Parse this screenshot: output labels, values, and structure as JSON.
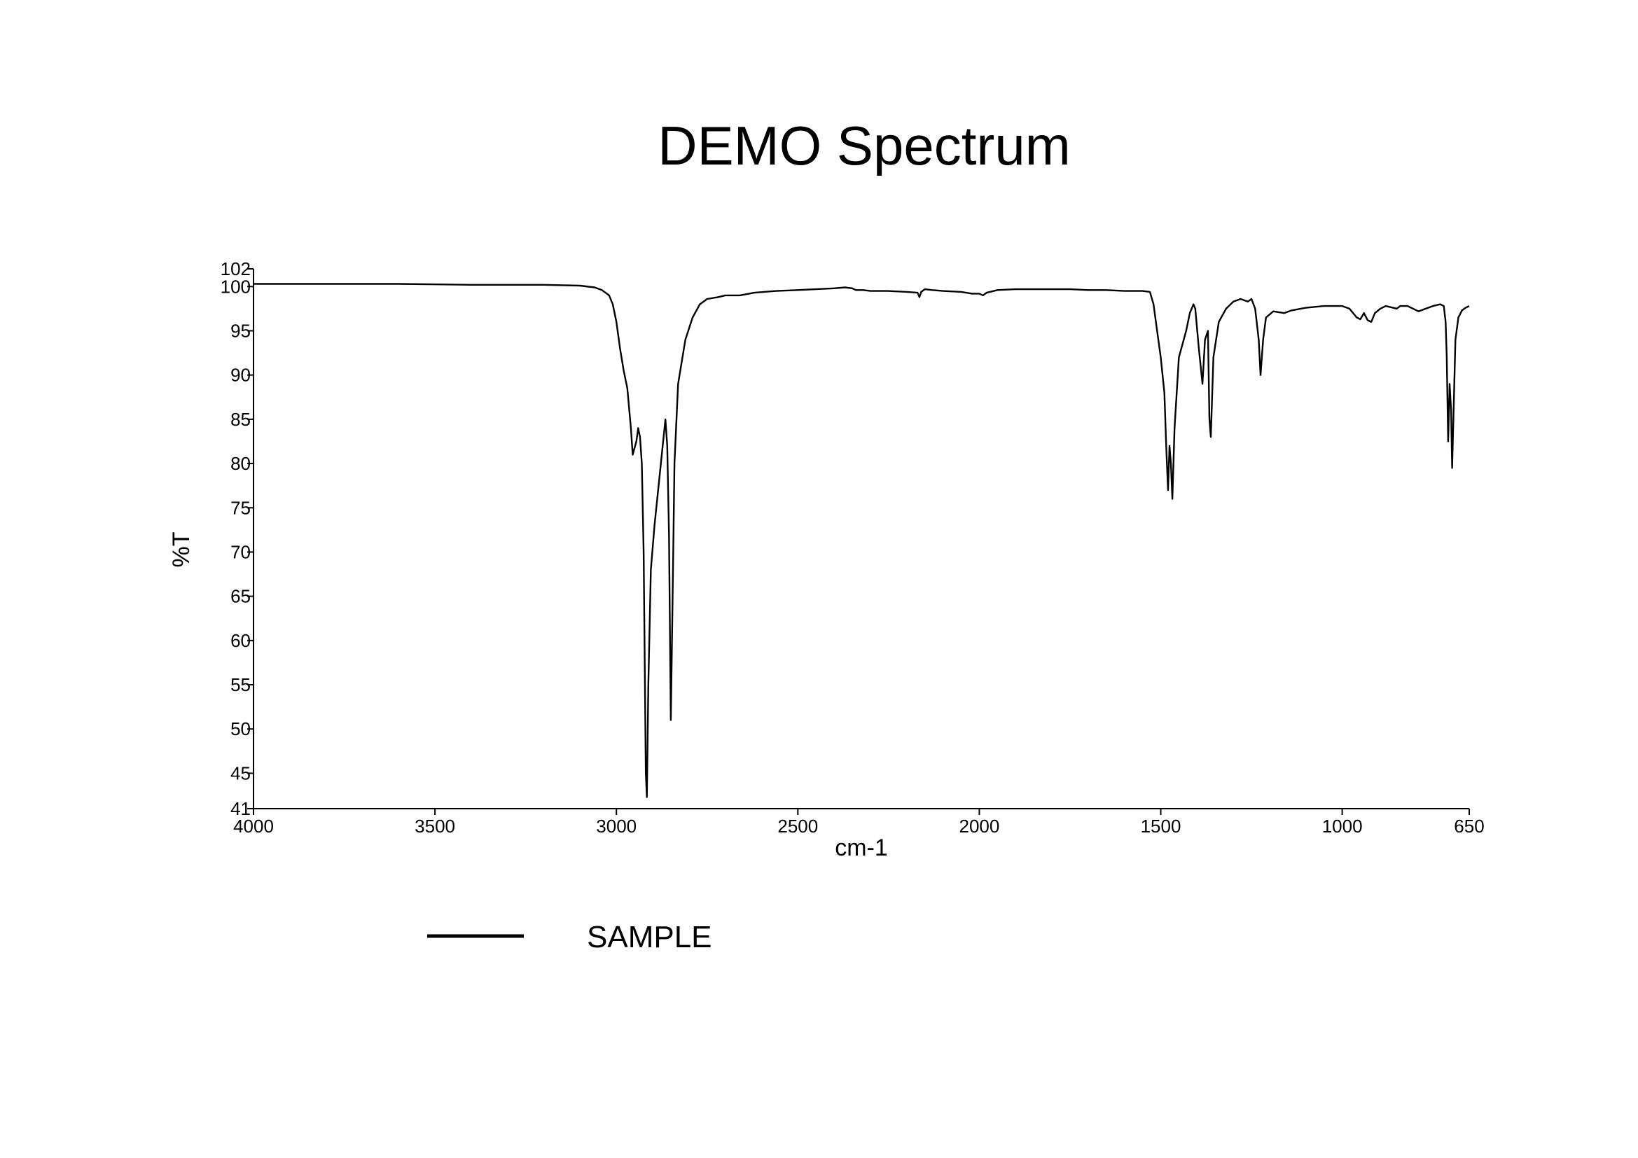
{
  "chart_data": {
    "type": "line",
    "title": "DEMO Spectrum",
    "xlabel": "cm-1",
    "ylabel": "%T",
    "xlim": [
      4000,
      650
    ],
    "ylim": [
      41,
      102
    ],
    "x_reversed": true,
    "xticks": [
      4000,
      3500,
      3000,
      2500,
      2000,
      1500,
      1000,
      650
    ],
    "yticks": [
      41,
      45,
      50,
      55,
      60,
      65,
      70,
      75,
      80,
      85,
      90,
      95,
      100,
      102
    ],
    "grid": false,
    "legend_position": "bottom-left",
    "series": [
      {
        "name": "SAMPLE",
        "color": "#000000",
        "points": [
          [
            4000,
            100.3
          ],
          [
            3800,
            100.3
          ],
          [
            3600,
            100.3
          ],
          [
            3400,
            100.2
          ],
          [
            3200,
            100.2
          ],
          [
            3100,
            100.1
          ],
          [
            3060,
            99.9
          ],
          [
            3040,
            99.6
          ],
          [
            3020,
            99.0
          ],
          [
            3010,
            98.0
          ],
          [
            3000,
            96.0
          ],
          [
            2990,
            93.0
          ],
          [
            2980,
            90.5
          ],
          [
            2970,
            88.5
          ],
          [
            2960,
            84.0
          ],
          [
            2955,
            81.0
          ],
          [
            2945,
            82.5
          ],
          [
            2940,
            84.0
          ],
          [
            2935,
            83.0
          ],
          [
            2930,
            80.0
          ],
          [
            2925,
            70.0
          ],
          [
            2922,
            58.0
          ],
          [
            2919,
            45.0
          ],
          [
            2916,
            42.3
          ],
          [
            2912,
            55.0
          ],
          [
            2905,
            68.0
          ],
          [
            2895,
            73.0
          ],
          [
            2880,
            79.0
          ],
          [
            2870,
            83.0
          ],
          [
            2865,
            85.0
          ],
          [
            2860,
            82.0
          ],
          [
            2855,
            72.0
          ],
          [
            2850,
            51.0
          ],
          [
            2845,
            65.0
          ],
          [
            2840,
            80.0
          ],
          [
            2830,
            89.0
          ],
          [
            2810,
            94.0
          ],
          [
            2790,
            96.5
          ],
          [
            2770,
            98.0
          ],
          [
            2750,
            98.6
          ],
          [
            2720,
            98.8
          ],
          [
            2700,
            99.0
          ],
          [
            2680,
            99.0
          ],
          [
            2660,
            99.0
          ],
          [
            2620,
            99.3
          ],
          [
            2560,
            99.5
          ],
          [
            2500,
            99.6
          ],
          [
            2450,
            99.7
          ],
          [
            2400,
            99.8
          ],
          [
            2370,
            99.9
          ],
          [
            2350,
            99.8
          ],
          [
            2340,
            99.6
          ],
          [
            2320,
            99.6
          ],
          [
            2300,
            99.5
          ],
          [
            2250,
            99.5
          ],
          [
            2200,
            99.4
          ],
          [
            2170,
            99.3
          ],
          [
            2165,
            98.8
          ],
          [
            2160,
            99.4
          ],
          [
            2150,
            99.7
          ],
          [
            2130,
            99.6
          ],
          [
            2100,
            99.5
          ],
          [
            2050,
            99.4
          ],
          [
            2020,
            99.2
          ],
          [
            2000,
            99.2
          ],
          [
            1990,
            99.0
          ],
          [
            1980,
            99.3
          ],
          [
            1950,
            99.6
          ],
          [
            1900,
            99.7
          ],
          [
            1800,
            99.7
          ],
          [
            1750,
            99.7
          ],
          [
            1700,
            99.6
          ],
          [
            1650,
            99.6
          ],
          [
            1600,
            99.5
          ],
          [
            1550,
            99.5
          ],
          [
            1530,
            99.4
          ],
          [
            1520,
            98.0
          ],
          [
            1510,
            95.0
          ],
          [
            1500,
            92.0
          ],
          [
            1495,
            90.0
          ],
          [
            1490,
            88.0
          ],
          [
            1485,
            82.0
          ],
          [
            1480,
            77.0
          ],
          [
            1476,
            82.0
          ],
          [
            1472,
            80.0
          ],
          [
            1468,
            76.0
          ],
          [
            1462,
            84.0
          ],
          [
            1450,
            92.0
          ],
          [
            1430,
            95.0
          ],
          [
            1420,
            97.0
          ],
          [
            1410,
            98.0
          ],
          [
            1405,
            97.5
          ],
          [
            1395,
            93.0
          ],
          [
            1385,
            89.0
          ],
          [
            1378,
            94.0
          ],
          [
            1370,
            95.0
          ],
          [
            1366,
            85.0
          ],
          [
            1362,
            83.0
          ],
          [
            1355,
            92.0
          ],
          [
            1340,
            96.0
          ],
          [
            1320,
            97.5
          ],
          [
            1300,
            98.3
          ],
          [
            1280,
            98.6
          ],
          [
            1260,
            98.3
          ],
          [
            1250,
            98.6
          ],
          [
            1240,
            97.5
          ],
          [
            1230,
            94.0
          ],
          [
            1225,
            90.0
          ],
          [
            1218,
            94.0
          ],
          [
            1210,
            96.5
          ],
          [
            1190,
            97.2
          ],
          [
            1160,
            97.0
          ],
          [
            1140,
            97.3
          ],
          [
            1100,
            97.6
          ],
          [
            1050,
            97.8
          ],
          [
            1000,
            97.8
          ],
          [
            980,
            97.5
          ],
          [
            960,
            96.5
          ],
          [
            950,
            96.3
          ],
          [
            940,
            97.0
          ],
          [
            930,
            96.2
          ],
          [
            920,
            96.0
          ],
          [
            910,
            97.0
          ],
          [
            895,
            97.5
          ],
          [
            880,
            97.8
          ],
          [
            860,
            97.6
          ],
          [
            850,
            97.5
          ],
          [
            840,
            97.8
          ],
          [
            820,
            97.8
          ],
          [
            790,
            97.2
          ],
          [
            770,
            97.5
          ],
          [
            750,
            97.8
          ],
          [
            730,
            98.0
          ],
          [
            720,
            97.8
          ],
          [
            715,
            96.0
          ],
          [
            712,
            92.0
          ],
          [
            708,
            82.5
          ],
          [
            704,
            89.0
          ],
          [
            700,
            86.0
          ],
          [
            697,
            79.5
          ],
          [
            693,
            86.0
          ],
          [
            688,
            94.0
          ],
          [
            680,
            96.5
          ],
          [
            670,
            97.3
          ],
          [
            660,
            97.6
          ],
          [
            650,
            97.8
          ]
        ]
      }
    ]
  }
}
